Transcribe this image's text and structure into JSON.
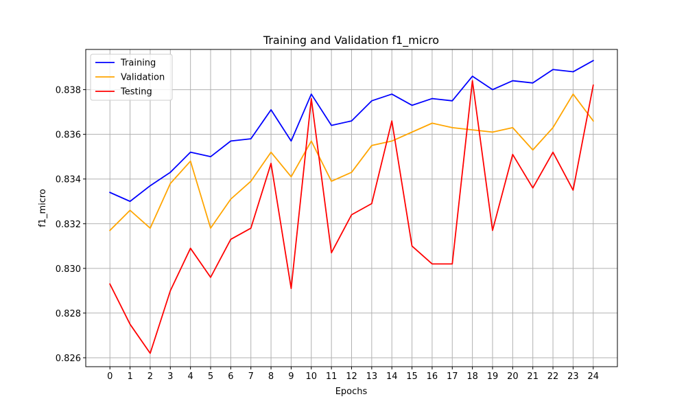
{
  "chart_data": {
    "type": "line",
    "title": "Training and Validation f1_micro",
    "xlabel": "Epochs",
    "ylabel": "f1_micro",
    "x": [
      0,
      1,
      2,
      3,
      4,
      5,
      6,
      7,
      8,
      9,
      10,
      11,
      12,
      13,
      14,
      15,
      16,
      17,
      18,
      19,
      20,
      21,
      22,
      23,
      24
    ],
    "x_ticks": [
      "0",
      "1",
      "2",
      "3",
      "4",
      "5",
      "6",
      "7",
      "8",
      "9",
      "10",
      "11",
      "12",
      "13",
      "14",
      "15",
      "16",
      "17",
      "18",
      "19",
      "20",
      "21",
      "22",
      "23",
      "24"
    ],
    "y_ticks": [
      "0.826",
      "0.828",
      "0.830",
      "0.832",
      "0.834",
      "0.836",
      "0.838"
    ],
    "y_tick_values": [
      0.826,
      0.828,
      0.83,
      0.832,
      0.834,
      0.836,
      0.838
    ],
    "xlim": [
      -1.2,
      25.2
    ],
    "ylim": [
      0.8256,
      0.8398
    ],
    "grid": true,
    "legend_position": "upper-left",
    "series": [
      {
        "name": "Training",
        "color": "#0000ff",
        "values": [
          0.8334,
          0.833,
          0.8337,
          0.8343,
          0.8352,
          0.835,
          0.8357,
          0.8358,
          0.8371,
          0.8357,
          0.8378,
          0.8364,
          0.8366,
          0.8375,
          0.8378,
          0.8373,
          0.8376,
          0.8375,
          0.8386,
          0.838,
          0.8384,
          0.8383,
          0.8389,
          0.8388,
          0.8393
        ]
      },
      {
        "name": "Validation",
        "color": "#ffa500",
        "values": [
          0.8317,
          0.8326,
          0.8318,
          0.8338,
          0.8348,
          0.8318,
          0.8331,
          0.8339,
          0.8352,
          0.8341,
          0.8357,
          0.8339,
          0.8343,
          0.8355,
          0.8357,
          0.8361,
          0.8365,
          0.8363,
          0.8362,
          0.8361,
          0.8363,
          0.8353,
          0.8363,
          0.8378,
          0.8366
        ]
      },
      {
        "name": "Testing",
        "color": "#ff0000",
        "values": [
          0.8293,
          0.8275,
          0.8262,
          0.829,
          0.8309,
          0.8296,
          0.8313,
          0.8318,
          0.8347,
          0.8291,
          0.8376,
          0.8307,
          0.8324,
          0.8329,
          0.8366,
          0.831,
          0.8302,
          0.8302,
          0.8384,
          0.8317,
          0.8351,
          0.8336,
          0.8352,
          0.8335,
          0.8382
        ]
      }
    ]
  }
}
